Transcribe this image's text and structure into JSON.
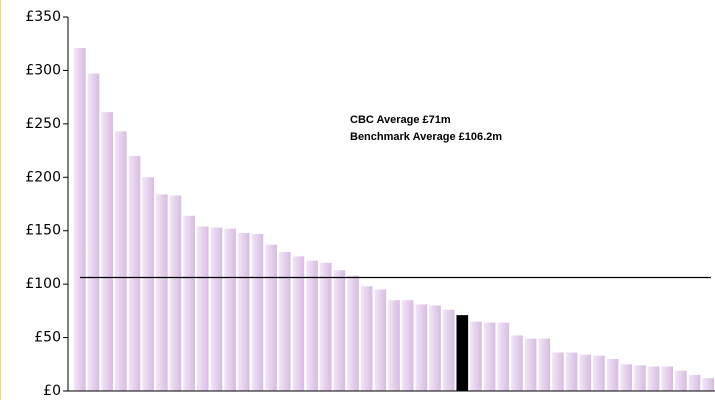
{
  "chart_data": {
    "type": "bar",
    "annotations": [
      "CBC Average £71m",
      "Benchmark Average £106.2m"
    ],
    "values": [
      321,
      297,
      261,
      243,
      220,
      200,
      184,
      183,
      164,
      154,
      153,
      152,
      148,
      147,
      137,
      130,
      126,
      122,
      120,
      113,
      108,
      98,
      95,
      85,
      85,
      81,
      80,
      76,
      71,
      65,
      64,
      64,
      52,
      49,
      49,
      36,
      36,
      34,
      33,
      30,
      25,
      24,
      23,
      23,
      19,
      15,
      12
    ],
    "colors": [
      "#dcc4e6",
      "#dcc4e6",
      "#dcc4e6",
      "#dcc4e6",
      "#dcc4e6",
      "#dcc4e6",
      "#dcc4e6",
      "#dcc4e6",
      "#dcc4e6",
      "#dcc4e6",
      "#dcc4e6",
      "#dcc4e6",
      "#dcc4e6",
      "#dcc4e6",
      "#dcc4e6",
      "#dcc4e6",
      "#dcc4e6",
      "#dcc4e6",
      "#dcc4e6",
      "#dcc4e6",
      "#dcc4e6",
      "#dcc4e6",
      "#dcc4e6",
      "#dcc4e6",
      "#dcc4e6",
      "#dcc4e6",
      "#dcc4e6",
      "#dcc4e6",
      "#000000",
      "#dcc4e6",
      "#dcc4e6",
      "#dcc4e6",
      "#dcc4e6",
      "#dcc4e6",
      "#dcc4e6",
      "#dcc4e6",
      "#dcc4e6",
      "#dcc4e6",
      "#dcc4e6",
      "#dcc4e6",
      "#dcc4e6",
      "#dcc4e6",
      "#dcc4e6",
      "#dcc4e6",
      "#dcc4e6",
      "#dcc4e6",
      "#dcc4e6"
    ],
    "reference_line": 106.2,
    "ylim": [
      0,
      350
    ],
    "yticks": [
      {
        "value": 0,
        "label": "£0"
      },
      {
        "value": 50,
        "label": "£50"
      },
      {
        "value": 100,
        "label": "£100"
      },
      {
        "value": 150,
        "label": "£150"
      },
      {
        "value": 200,
        "label": "£200"
      },
      {
        "value": 250,
        "label": "£250"
      },
      {
        "value": 300,
        "label": "£300"
      },
      {
        "value": 350,
        "label": "£350"
      }
    ]
  }
}
